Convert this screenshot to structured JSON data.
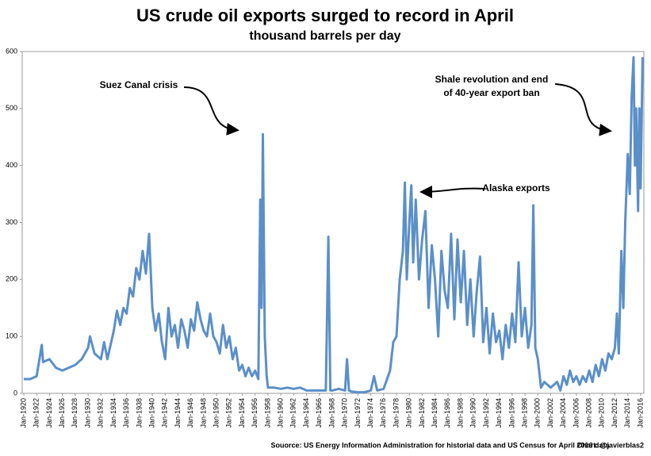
{
  "chart_data": {
    "type": "line",
    "title": "US crude oil exports surged to record in April",
    "subtitle": "thousand barrels per day",
    "source": "Souorce: US Energy Information Administration for historial data and US Census for April 2016 data",
    "credit": "Chart: @javierblas2",
    "annotations": [
      "Suez Canal crisis",
      "Shale revolution and end",
      "of 40-year export ban",
      "Alaska exports"
    ],
    "xlim": [
      1919.75,
      2016.5
    ],
    "xticks": [
      {
        "value": 1920,
        "label": "Jan-1920"
      },
      {
        "value": 1922,
        "label": "Jan-1922"
      },
      {
        "value": 1924,
        "label": "Jan-1924"
      },
      {
        "value": 1926,
        "label": "Jan-1926"
      },
      {
        "value": 1928,
        "label": "Jan-1928"
      },
      {
        "value": 1930,
        "label": "Jan-1930"
      },
      {
        "value": 1932,
        "label": "Jan-1932"
      },
      {
        "value": 1934,
        "label": "Jan-1934"
      },
      {
        "value": 1936,
        "label": "Jan-1936"
      },
      {
        "value": 1938,
        "label": "Jan-1938"
      },
      {
        "value": 1940,
        "label": "Jan-1940"
      },
      {
        "value": 1942,
        "label": "Jan-1942"
      },
      {
        "value": 1944,
        "label": "Jan-1944"
      },
      {
        "value": 1946,
        "label": "Jan-1946"
      },
      {
        "value": 1948,
        "label": "Jan-1948"
      },
      {
        "value": 1950,
        "label": "Jan-1950"
      },
      {
        "value": 1952,
        "label": "Jan-1952"
      },
      {
        "value": 1954,
        "label": "Jan-1954"
      },
      {
        "value": 1956,
        "label": "Jan-1956"
      },
      {
        "value": 1958,
        "label": "Jan-1958"
      },
      {
        "value": 1960,
        "label": "Jan-1960"
      },
      {
        "value": 1962,
        "label": "Jan-1962"
      },
      {
        "value": 1964,
        "label": "Jan-1964"
      },
      {
        "value": 1966,
        "label": "Jan-1966"
      },
      {
        "value": 1968,
        "label": "Jan-1968"
      },
      {
        "value": 1970,
        "label": "Jan-1970"
      },
      {
        "value": 1972,
        "label": "Jan-1972"
      },
      {
        "value": 1974,
        "label": "Jan-1974"
      },
      {
        "value": 1976,
        "label": "Jan-1976"
      },
      {
        "value": 1978,
        "label": "Jan-1978"
      },
      {
        "value": 1980,
        "label": "Jan-1980"
      },
      {
        "value": 1982,
        "label": "Jan-1982"
      },
      {
        "value": 1984,
        "label": "Jan-1984"
      },
      {
        "value": 1986,
        "label": "Jan-1986"
      },
      {
        "value": 1988,
        "label": "Jan-1988"
      },
      {
        "value": 1990,
        "label": "Jan-1990"
      },
      {
        "value": 1992,
        "label": "Jan-1992"
      },
      {
        "value": 1994,
        "label": "Jan-1994"
      },
      {
        "value": 1996,
        "label": "Jan-1996"
      },
      {
        "value": 1998,
        "label": "Jan-1998"
      },
      {
        "value": 2000,
        "label": "Jan-2000"
      },
      {
        "value": 2002,
        "label": "Jan-2002"
      },
      {
        "value": 2004,
        "label": "Jan-2004"
      },
      {
        "value": 2006,
        "label": "Jan-2006"
      },
      {
        "value": 2008,
        "label": "Jan-2008"
      },
      {
        "value": 2010,
        "label": "Jan-2010"
      },
      {
        "value": 2012,
        "label": "Jan-2012"
      },
      {
        "value": 2014,
        "label": "Jan-2014"
      },
      {
        "value": 2016,
        "label": "Jan-2016"
      }
    ],
    "ylim": [
      0,
      600
    ],
    "yticks": [
      0,
      100,
      200,
      300,
      400,
      500,
      600
    ],
    "grid": false,
    "series": [
      {
        "color": "#5b8fc9",
        "x": [
          1920,
          1921,
          1922,
          1922.8,
          1923,
          1924,
          1925,
          1926,
          1927,
          1928,
          1929,
          1930,
          1930.3,
          1931,
          1932,
          1932.5,
          1933,
          1934,
          1934.5,
          1935,
          1935.5,
          1936,
          1936.5,
          1937,
          1937.5,
          1938,
          1938.5,
          1939,
          1939.5,
          1940,
          1940.5,
          1941,
          1941.5,
          1942,
          1942.5,
          1943,
          1943.5,
          1944,
          1944.5,
          1945,
          1945.5,
          1946,
          1946.5,
          1947,
          1947.5,
          1948,
          1948.5,
          1949,
          1949.5,
          1950,
          1950.5,
          1951,
          1951.5,
          1952,
          1952.5,
          1953,
          1953.5,
          1954,
          1954.5,
          1955,
          1955.5,
          1956,
          1956.5,
          1956.8,
          1957,
          1957.2,
          1957.5,
          1957.8,
          1958,
          1959,
          1960,
          1961,
          1962,
          1963,
          1964,
          1965,
          1966,
          1967,
          1967.4,
          1967.7,
          1968,
          1969,
          1970,
          1970.3,
          1970.6,
          1971,
          1972,
          1973,
          1974,
          1974.5,
          1975,
          1976,
          1977,
          1977.5,
          1978,
          1978.5,
          1979,
          1979.3,
          1979.6,
          1980,
          1980.3,
          1980.6,
          1981,
          1981.5,
          1982,
          1982.5,
          1983,
          1983.5,
          1984,
          1984.5,
          1985,
          1985.5,
          1986,
          1986.5,
          1987,
          1987.5,
          1988,
          1988.5,
          1989,
          1989.5,
          1990,
          1990.5,
          1991,
          1991.5,
          1992,
          1992.5,
          1993,
          1993.5,
          1994,
          1994.5,
          1995,
          1995.5,
          1996,
          1996.5,
          1997,
          1997.5,
          1998,
          1998.5,
          1999,
          1999.3,
          1999.6,
          2000,
          2000.5,
          2001,
          2002,
          2003,
          2003.5,
          2004,
          2004.5,
          2005,
          2005.5,
          2006,
          2006.5,
          2007,
          2007.5,
          2008,
          2008.5,
          2009,
          2009.5,
          2010,
          2010.5,
          2011,
          2011.5,
          2012,
          2012.3,
          2012.6,
          2013,
          2013.3,
          2013.6,
          2014,
          2014.3,
          2014.6,
          2014.9,
          2015.1,
          2015.3,
          2015.6,
          2015.8,
          2016,
          2016.3
        ],
        "values": [
          25,
          25,
          30,
          85,
          55,
          60,
          45,
          40,
          45,
          50,
          60,
          80,
          100,
          70,
          60,
          90,
          60,
          110,
          145,
          120,
          150,
          140,
          185,
          170,
          220,
          200,
          250,
          210,
          280,
          150,
          110,
          140,
          90,
          60,
          150,
          100,
          120,
          80,
          130,
          110,
          80,
          130,
          110,
          160,
          130,
          110,
          100,
          140,
          100,
          90,
          70,
          120,
          80,
          100,
          60,
          80,
          40,
          50,
          30,
          45,
          30,
          40,
          25,
          340,
          150,
          455,
          100,
          30,
          10,
          10,
          8,
          10,
          8,
          10,
          5,
          5,
          5,
          5,
          275,
          5,
          5,
          8,
          5,
          60,
          5,
          3,
          2,
          2,
          5,
          30,
          5,
          8,
          40,
          90,
          100,
          200,
          250,
          370,
          200,
          300,
          365,
          230,
          340,
          200,
          270,
          320,
          150,
          260,
          200,
          100,
          250,
          180,
          150,
          280,
          130,
          270,
          160,
          250,
          120,
          200,
          100,
          180,
          240,
          90,
          150,
          70,
          140,
          90,
          110,
          60,
          120,
          80,
          140,
          90,
          230,
          100,
          150,
          80,
          120,
          330,
          80,
          60,
          10,
          20,
          10,
          20,
          5,
          30,
          15,
          40,
          20,
          30,
          15,
          30,
          20,
          40,
          20,
          50,
          30,
          60,
          40,
          70,
          60,
          80,
          140,
          70,
          250,
          150,
          300,
          420,
          350,
          520,
          590,
          400,
          500,
          320,
          500,
          360,
          590
        ]
      }
    ]
  }
}
